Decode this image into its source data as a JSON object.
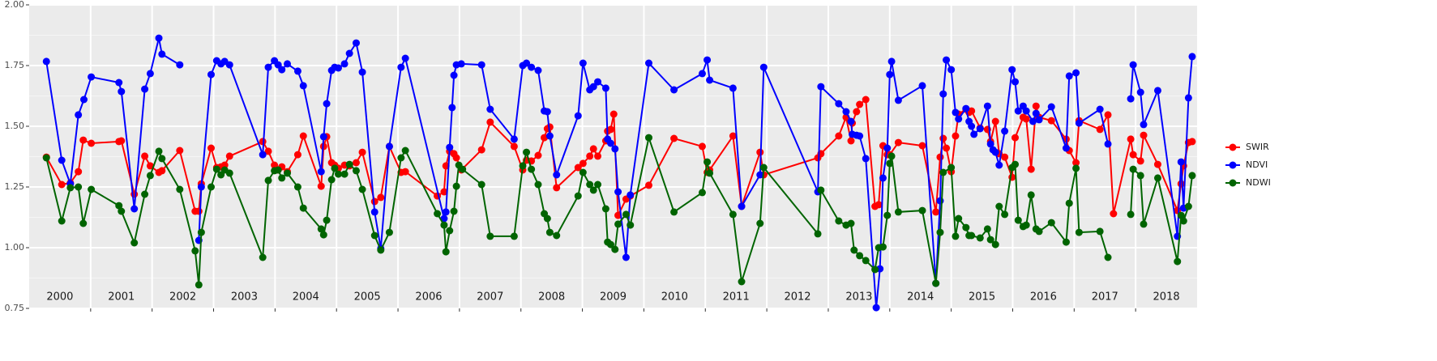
{
  "chart_data": {
    "type": "line",
    "xlim": [
      2000,
      2019
    ],
    "ylim": [
      0.75,
      2.0
    ],
    "xticks": [
      2001,
      2002,
      2003,
      2004,
      2005,
      2006,
      2007,
      2008,
      2009,
      2010,
      2011,
      2012,
      2013,
      2014,
      2015,
      2016,
      2017,
      2018
    ],
    "year_labels": [
      2000,
      2001,
      2002,
      2003,
      2004,
      2005,
      2006,
      2007,
      2008,
      2009,
      2010,
      2011,
      2012,
      2013,
      2014,
      2015,
      2016,
      2017,
      2018
    ],
    "yticks": [
      {
        "value": 0.75,
        "label": "0.75"
      },
      {
        "value": 1.0,
        "label": "1.00"
      },
      {
        "value": 1.25,
        "label": "1.25"
      },
      {
        "value": 1.5,
        "label": "1.50"
      },
      {
        "value": 1.75,
        "label": "1.75"
      },
      {
        "value": 2.0,
        "label": "2.00"
      }
    ],
    "grid": true,
    "legend": "right",
    "series": [
      {
        "name": "SWIR",
        "color": "#ff0000",
        "x": [
          2000.28,
          2000.53,
          2000.67,
          2000.8,
          2000.88,
          2001.01,
          2001.46,
          2001.5,
          2001.71,
          2001.88,
          2001.97,
          2002.11,
          2002.16,
          2002.45,
          2002.7,
          2002.76,
          2002.8,
          2002.96,
          2003.05,
          2003.12,
          2003.18,
          2003.26,
          2003.8,
          2003.89,
          2003.99,
          2004.05,
          2004.11,
          2004.2,
          2004.37,
          2004.46,
          2004.75,
          2004.79,
          2004.84,
          2004.92,
          2004.97,
          2005.03,
          2005.13,
          2005.21,
          2005.32,
          2005.42,
          2005.62,
          2005.72,
          2005.86,
          2006.05,
          2006.12,
          2006.64,
          2006.75,
          2006.78,
          2006.84,
          2006.91,
          2006.95,
          2007.03,
          2007.36,
          2007.5,
          2007.89,
          2008.03,
          2008.09,
          2008.17,
          2008.28,
          2008.38,
          2008.43,
          2008.47,
          2008.58,
          2008.93,
          2009.01,
          2009.12,
          2009.18,
          2009.25,
          2009.38,
          2009.41,
          2009.46,
          2009.51,
          2009.58,
          2009.71,
          2009.78,
          2010.08,
          2010.49,
          2010.95,
          2011.03,
          2011.07,
          2011.45,
          2011.59,
          2011.89,
          2011.95,
          2012.83,
          2012.88,
          2013.17,
          2013.29,
          2013.37,
          2013.39,
          2013.46,
          2013.51,
          2013.61,
          2013.76,
          2013.82,
          2013.89,
          2013.96,
          2014.0,
          2014.14,
          2014.53,
          2014.75,
          2014.82,
          2014.87,
          2014.92,
          2015.0,
          2015.07,
          2015.12,
          2015.24,
          2015.29,
          2015.33,
          2015.47,
          2015.59,
          2015.64,
          2015.72,
          2015.78,
          2015.87,
          2015.99,
          2016.04,
          2016.17,
          2016.22,
          2016.3,
          2016.38,
          2016.43,
          2016.63,
          2016.87,
          2016.92,
          2017.03,
          2017.08,
          2017.42,
          2017.55,
          2017.64,
          2017.92,
          2017.96,
          2018.08,
          2018.13,
          2018.36,
          2018.68,
          2018.74,
          2018.78,
          2018.86,
          2018.92
        ],
        "values": [
          1.373,
          1.26,
          1.267,
          1.313,
          1.443,
          1.43,
          1.437,
          1.44,
          1.22,
          1.377,
          1.337,
          1.31,
          1.317,
          1.4,
          1.15,
          1.15,
          1.263,
          1.41,
          1.33,
          1.333,
          1.34,
          1.377,
          1.437,
          1.397,
          1.34,
          1.32,
          1.333,
          1.313,
          1.383,
          1.46,
          1.253,
          1.417,
          1.457,
          1.35,
          1.34,
          1.327,
          1.34,
          1.337,
          1.35,
          1.393,
          1.19,
          1.207,
          1.417,
          1.31,
          1.313,
          1.213,
          1.23,
          1.337,
          1.397,
          1.387,
          1.37,
          1.32,
          1.403,
          1.517,
          1.417,
          1.32,
          1.36,
          1.357,
          1.38,
          1.453,
          1.49,
          1.497,
          1.247,
          1.33,
          1.347,
          1.377,
          1.407,
          1.377,
          1.44,
          1.48,
          1.487,
          1.55,
          1.133,
          1.2,
          1.213,
          1.257,
          1.45,
          1.417,
          1.31,
          1.32,
          1.46,
          1.17,
          1.393,
          1.3,
          1.37,
          1.387,
          1.46,
          1.537,
          1.44,
          1.513,
          1.56,
          1.59,
          1.61,
          1.17,
          1.177,
          1.42,
          1.383,
          1.383,
          1.433,
          1.42,
          1.147,
          1.373,
          1.45,
          1.41,
          1.313,
          1.46,
          1.55,
          1.57,
          1.557,
          1.563,
          1.493,
          1.487,
          1.437,
          1.52,
          1.387,
          1.373,
          1.29,
          1.453,
          1.537,
          1.53,
          1.323,
          1.583,
          1.537,
          1.523,
          1.447,
          1.4,
          1.35,
          1.523,
          1.487,
          1.547,
          1.14,
          1.447,
          1.383,
          1.357,
          1.463,
          1.343,
          1.153,
          1.263,
          1.337,
          1.433,
          1.437
        ]
      },
      {
        "name": "NDVI",
        "color": "#0000ff",
        "x": [
          2000.28,
          2000.53,
          2000.67,
          2000.8,
          2000.89,
          2001.01,
          2001.46,
          2001.5,
          2001.71,
          2001.88,
          2001.97,
          2002.11,
          2002.16,
          2002.45,
          null,
          2002.76,
          2002.8,
          2002.96,
          2003.05,
          2003.12,
          2003.18,
          2003.26,
          2003.8,
          2003.89,
          2003.99,
          2004.05,
          2004.11,
          2004.2,
          2004.37,
          2004.46,
          2004.75,
          2004.79,
          2004.84,
          2004.92,
          2004.97,
          2005.03,
          2005.13,
          2005.21,
          2005.32,
          2005.42,
          2005.62,
          2005.72,
          2005.86,
          2006.05,
          2006.12,
          2006.75,
          2006.78,
          2006.84,
          2006.88,
          2006.91,
          2006.95,
          2007.03,
          2007.36,
          2007.5,
          2007.89,
          2008.03,
          2008.09,
          2008.17,
          2008.28,
          2008.38,
          2008.43,
          2008.47,
          2008.58,
          2008.93,
          2009.01,
          2009.12,
          2009.18,
          2009.25,
          2009.38,
          2009.41,
          2009.46,
          2009.53,
          2009.58,
          2009.71,
          2009.78,
          2010.08,
          2010.49,
          2010.95,
          2011.03,
          2011.07,
          2011.45,
          2011.59,
          2011.89,
          2011.95,
          2012.83,
          2012.88,
          2013.17,
          2013.29,
          2013.37,
          2013.39,
          2013.46,
          2013.51,
          2013.61,
          2013.78,
          2013.84,
          2013.89,
          2013.96,
          2014.0,
          2014.03,
          2014.14,
          2014.53,
          2014.75,
          2014.82,
          2014.87,
          2014.92,
          2015.0,
          2015.07,
          2015.12,
          2015.24,
          2015.29,
          2015.33,
          2015.37,
          2015.47,
          2015.59,
          2015.64,
          2015.68,
          2015.72,
          2015.78,
          2015.87,
          2015.99,
          2016.04,
          2016.09,
          2016.17,
          2016.22,
          2016.33,
          2016.38,
          2016.43,
          2016.63,
          2016.87,
          2016.92,
          2017.03,
          2017.08,
          2017.42,
          2017.55,
          null,
          2017.92,
          2017.96,
          2018.08,
          2018.13,
          2018.36,
          2018.68,
          2018.74,
          2018.78,
          2018.86,
          2018.92
        ],
        "values": [
          1.767,
          1.36,
          1.263,
          1.547,
          1.61,
          1.703,
          1.68,
          1.643,
          1.16,
          1.653,
          1.717,
          1.863,
          1.797,
          1.753,
          null,
          1.03,
          1.25,
          1.713,
          1.77,
          1.757,
          1.767,
          1.753,
          1.383,
          1.743,
          1.77,
          1.753,
          1.733,
          1.757,
          1.727,
          1.667,
          1.313,
          1.457,
          1.593,
          1.73,
          1.743,
          1.74,
          1.757,
          1.8,
          1.843,
          1.723,
          1.147,
          0.997,
          1.417,
          1.743,
          1.78,
          1.12,
          1.147,
          1.413,
          1.577,
          1.71,
          1.753,
          1.757,
          1.753,
          1.57,
          1.447,
          1.75,
          1.76,
          1.743,
          1.73,
          1.563,
          1.56,
          1.46,
          1.3,
          1.543,
          1.76,
          1.65,
          1.663,
          1.683,
          1.657,
          1.447,
          1.43,
          1.407,
          1.23,
          0.96,
          1.217,
          1.76,
          1.65,
          1.717,
          1.773,
          1.69,
          1.657,
          1.17,
          1.3,
          1.743,
          1.23,
          1.663,
          1.593,
          1.56,
          1.52,
          1.467,
          1.463,
          1.46,
          1.367,
          0.753,
          0.913,
          1.287,
          1.41,
          1.713,
          1.767,
          1.607,
          1.667,
          0.853,
          1.193,
          1.633,
          1.773,
          1.733,
          1.557,
          1.53,
          1.573,
          1.52,
          1.5,
          1.467,
          1.49,
          1.583,
          1.427,
          1.403,
          1.393,
          1.34,
          1.48,
          1.733,
          1.683,
          1.563,
          1.583,
          1.563,
          1.52,
          1.553,
          1.527,
          1.58,
          1.41,
          1.707,
          1.72,
          1.513,
          1.57,
          1.427,
          null,
          1.613,
          1.753,
          1.64,
          1.507,
          1.647,
          1.047,
          1.353,
          1.163,
          1.617,
          1.787
        ]
      },
      {
        "name": "NDWI",
        "color": "#006400",
        "x": [
          2000.28,
          2000.53,
          2000.67,
          2000.8,
          2000.88,
          2001.01,
          2001.46,
          2001.5,
          2001.71,
          2001.88,
          2001.97,
          2002.11,
          2002.16,
          2002.45,
          2002.7,
          2002.76,
          2002.8,
          2002.96,
          2003.05,
          2003.12,
          2003.18,
          2003.26,
          2003.8,
          2003.89,
          2003.99,
          2004.05,
          2004.11,
          2004.2,
          2004.37,
          2004.46,
          2004.75,
          2004.79,
          2004.84,
          2004.92,
          2004.97,
          2005.03,
          2005.13,
          2005.21,
          2005.32,
          2005.42,
          2005.62,
          2005.72,
          2005.86,
          2006.05,
          2006.12,
          2006.64,
          2006.75,
          2006.78,
          2006.84,
          2006.91,
          2006.95,
          2006.99,
          2007.05,
          2007.36,
          2007.5,
          2007.89,
          2008.03,
          2008.09,
          2008.17,
          2008.28,
          2008.38,
          2008.43,
          2008.47,
          2008.58,
          2008.93,
          2009.01,
          2009.12,
          2009.18,
          2009.25,
          2009.38,
          2009.41,
          2009.46,
          2009.53,
          2009.58,
          2009.71,
          2009.78,
          2010.08,
          2010.49,
          2010.95,
          2011.03,
          2011.07,
          2011.45,
          2011.59,
          2011.89,
          2011.95,
          2012.83,
          2012.88,
          2013.17,
          2013.29,
          2013.37,
          2013.42,
          2013.51,
          2013.61,
          2013.76,
          2013.82,
          2013.89,
          2013.96,
          2014.0,
          2014.03,
          2014.14,
          2014.53,
          2014.75,
          2014.82,
          2014.87,
          2015.0,
          2015.07,
          2015.12,
          2015.24,
          2015.29,
          2015.33,
          2015.47,
          2015.59,
          2015.64,
          2015.72,
          2015.78,
          2015.87,
          2015.99,
          2016.04,
          2016.09,
          2016.17,
          2016.22,
          2016.3,
          2016.38,
          2016.43,
          2016.63,
          2016.87,
          2016.92,
          2017.03,
          2017.08,
          2017.42,
          2017.55,
          null,
          2017.92,
          2017.96,
          2018.08,
          2018.13,
          2018.36,
          2018.68,
          2018.74,
          2018.78,
          2018.86,
          2018.92
        ],
        "values": [
          1.37,
          1.11,
          1.247,
          1.25,
          1.1,
          1.24,
          1.173,
          1.15,
          1.02,
          1.22,
          1.297,
          1.397,
          1.367,
          1.24,
          0.987,
          0.847,
          1.063,
          1.25,
          1.323,
          1.3,
          1.32,
          1.307,
          0.96,
          1.277,
          1.317,
          1.32,
          1.287,
          1.307,
          1.25,
          1.163,
          1.077,
          1.053,
          1.113,
          1.28,
          1.327,
          1.303,
          1.303,
          1.343,
          1.317,
          1.24,
          1.05,
          0.99,
          1.063,
          1.37,
          1.4,
          1.14,
          1.093,
          0.983,
          1.07,
          1.15,
          1.253,
          1.34,
          1.323,
          1.26,
          1.047,
          1.047,
          1.337,
          1.393,
          1.323,
          1.26,
          1.14,
          1.12,
          1.063,
          1.05,
          1.213,
          1.31,
          1.26,
          1.237,
          1.26,
          1.16,
          1.023,
          1.013,
          0.993,
          1.097,
          1.137,
          1.093,
          1.453,
          1.147,
          1.227,
          1.353,
          1.307,
          1.137,
          0.86,
          1.1,
          1.33,
          1.057,
          1.237,
          1.11,
          1.093,
          1.1,
          0.99,
          0.967,
          0.947,
          0.91,
          1.0,
          1.003,
          1.133,
          1.347,
          1.377,
          1.147,
          1.153,
          0.853,
          1.063,
          1.31,
          1.33,
          1.047,
          1.12,
          1.083,
          1.05,
          1.05,
          1.04,
          1.077,
          1.033,
          1.013,
          1.17,
          1.137,
          1.33,
          1.343,
          1.113,
          1.087,
          1.093,
          1.217,
          1.077,
          1.067,
          1.103,
          1.023,
          1.183,
          1.327,
          1.063,
          1.067,
          0.96,
          null,
          1.137,
          1.323,
          1.297,
          1.097,
          1.287,
          0.943,
          1.133,
          1.11,
          1.17,
          1.297
        ]
      }
    ]
  }
}
